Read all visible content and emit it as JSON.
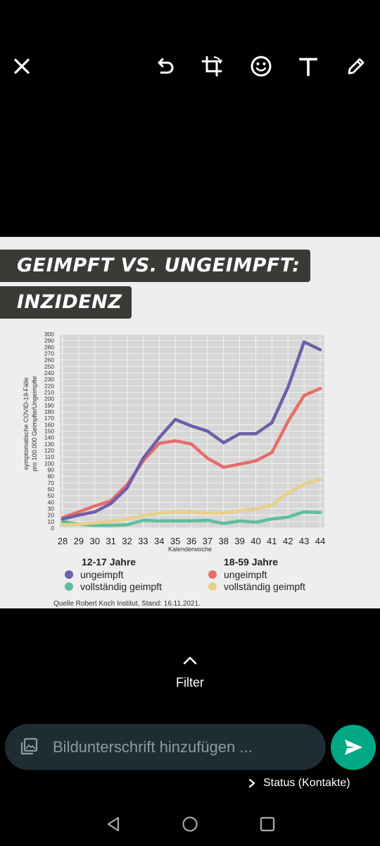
{
  "toolbar": {
    "icons": [
      "close-icon",
      "undo-icon",
      "crop-rotate-icon",
      "emoji-icon",
      "text-icon",
      "pencil-icon"
    ]
  },
  "image": {
    "banner_line1": "GEIMPFT VS. UNGEIMPFT:",
    "banner_line2": "INZIDENZ",
    "source": "Quelle Robert Koch Institut, Stand: 16.11.2021.",
    "legend": {
      "group1": {
        "title": "12-17 Jahre",
        "items": [
          "ungeimpft",
          "vollständig geimpft"
        ]
      },
      "group2": {
        "title": "18-59 Jahre",
        "items": [
          "ungeimpft",
          "vollständig geimpft"
        ]
      }
    }
  },
  "chart_data": {
    "type": "line",
    "x": [
      28,
      29,
      30,
      31,
      32,
      33,
      34,
      35,
      36,
      37,
      38,
      39,
      40,
      41,
      42,
      43,
      44
    ],
    "xlabel": "Kalenderwoche",
    "ylabel_line1": "symptomatische COVID-19-Fälle",
    "ylabel_line2": "pro 100.000 Geimpfte/Ungeimpfte",
    "ylim": [
      0,
      300
    ],
    "yticks": [
      0,
      10,
      20,
      30,
      40,
      50,
      60,
      70,
      80,
      90,
      100,
      110,
      120,
      130,
      140,
      150,
      160,
      170,
      180,
      190,
      200,
      210,
      220,
      230,
      240,
      250,
      260,
      270,
      280,
      290,
      300
    ],
    "grid": true,
    "series": [
      {
        "name": "ungeimpft",
        "group": "12-17 Jahre",
        "color": "#6e5fa8",
        "values": [
          14,
          20,
          25,
          38,
          62,
          108,
          140,
          168,
          158,
          150,
          132,
          146,
          146,
          163,
          218,
          288,
          276
        ]
      },
      {
        "name": "vollständig geimpft",
        "group": "12-17 Jahre",
        "color": "#5fbf9a",
        "values": [
          10,
          6,
          4,
          4,
          5,
          12,
          11,
          11,
          11,
          12,
          7,
          11,
          9,
          14,
          17,
          25,
          24
        ]
      },
      {
        "name": "ungeimpft",
        "group": "18-59 Jahre",
        "color": "#e86c68",
        "values": [
          16,
          25,
          34,
          42,
          67,
          104,
          131,
          135,
          130,
          108,
          94,
          99,
          104,
          117,
          165,
          205,
          216
        ]
      },
      {
        "name": "vollständig geimpft",
        "group": "18-59 Jahre",
        "color": "#e6d08a",
        "values": [
          5,
          6,
          8,
          10,
          14,
          19,
          23,
          25,
          25,
          23,
          23,
          27,
          29,
          36,
          54,
          68,
          75
        ]
      }
    ]
  },
  "filter": {
    "label": "Filter"
  },
  "caption": {
    "placeholder": "Bildunterschrift hinzufügen ..."
  },
  "status": {
    "label": "Status (Kontakte)"
  },
  "colors": {
    "accent": "#00a884",
    "caption_bg": "#1f2c34",
    "banner_bg": "#3a3a37",
    "chart_bg": "#d6d6d6"
  }
}
